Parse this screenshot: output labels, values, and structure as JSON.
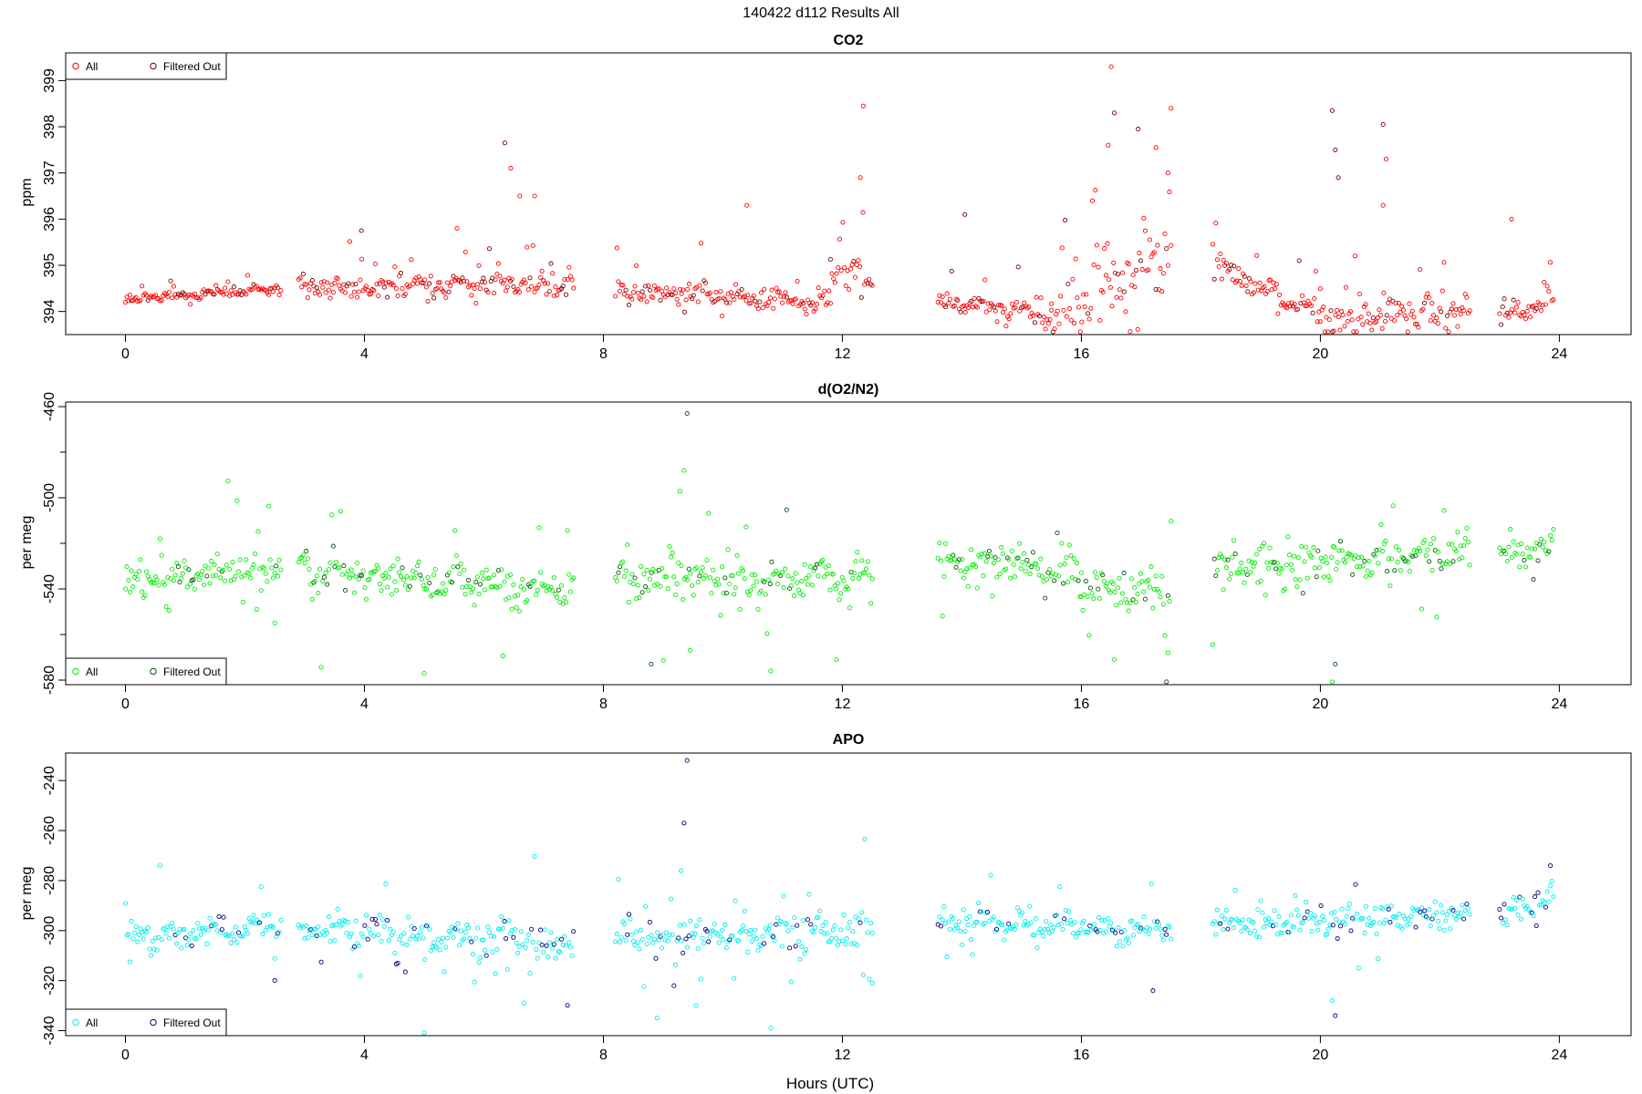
{
  "figure_title": "140422   d112   Results All",
  "xlabel": "Hours (UTC)",
  "chart_data": [
    {
      "type": "scatter",
      "title": "CO2",
      "ylabel": "ppm",
      "xlim": [
        -1,
        25.2
      ],
      "ylim": [
        393.5,
        399.6
      ],
      "xticks": [
        0,
        4,
        8,
        12,
        16,
        20,
        24
      ],
      "yticks": [
        394,
        395,
        396,
        397,
        398,
        399
      ],
      "legend_position": "top-left",
      "legend": [
        "All",
        "Filtered Out"
      ],
      "colors": {
        "all": "#ff0000",
        "filtered": "#7a0000"
      },
      "segments": [
        {
          "x": [
            0.0,
            2.6
          ],
          "y": [
            394.25,
            394.5
          ],
          "noise": 0.12
        },
        {
          "x": [
            2.9,
            7.5
          ],
          "y": [
            394.5,
            394.6
          ],
          "noise": 0.3
        },
        {
          "x": [
            8.2,
            11.8
          ],
          "y": [
            394.4,
            394.2
          ],
          "noise": 0.25
        },
        {
          "x": [
            11.8,
            12.5
          ],
          "y": [
            395.0,
            394.6
          ],
          "noise": 0.5
        },
        {
          "x": [
            13.6,
            15.5
          ],
          "y": [
            394.2,
            393.9
          ],
          "noise": 0.25
        },
        {
          "x": [
            15.5,
            17.5
          ],
          "y": [
            394.0,
            395.0
          ],
          "noise": 0.9
        },
        {
          "x": [
            18.2,
            20.0
          ],
          "y": [
            395.0,
            393.9
          ],
          "noise": 0.3
        },
        {
          "x": [
            20.0,
            22.5
          ],
          "y": [
            393.8,
            394.0
          ],
          "noise": 0.4
        },
        {
          "x": [
            23.0,
            23.9
          ],
          "y": [
            393.9,
            394.2
          ],
          "noise": 0.25
        }
      ],
      "outliers": [
        {
          "x": 3.95,
          "y": 395.75
        },
        {
          "x": 5.55,
          "y": 395.8
        },
        {
          "x": 6.35,
          "y": 397.65
        },
        {
          "x": 6.45,
          "y": 397.1
        },
        {
          "x": 6.6,
          "y": 396.5
        },
        {
          "x": 6.85,
          "y": 396.5
        },
        {
          "x": 10.4,
          "y": 396.3
        },
        {
          "x": 12.35,
          "y": 398.45
        },
        {
          "x": 12.3,
          "y": 396.9
        },
        {
          "x": 14.05,
          "y": 396.1
        },
        {
          "x": 16.5,
          "y": 399.3
        },
        {
          "x": 16.55,
          "y": 398.3
        },
        {
          "x": 16.45,
          "y": 397.6
        },
        {
          "x": 16.95,
          "y": 397.95
        },
        {
          "x": 17.25,
          "y": 397.55
        },
        {
          "x": 17.5,
          "y": 398.4
        },
        {
          "x": 17.45,
          "y": 397.0
        },
        {
          "x": 20.2,
          "y": 398.35
        },
        {
          "x": 20.25,
          "y": 397.5
        },
        {
          "x": 20.3,
          "y": 396.9
        },
        {
          "x": 21.05,
          "y": 398.05
        },
        {
          "x": 21.1,
          "y": 397.3
        },
        {
          "x": 21.05,
          "y": 396.3
        },
        {
          "x": 23.2,
          "y": 396.0
        }
      ]
    },
    {
      "type": "scatter",
      "title": "d(O2/N2)",
      "ylabel": "per meg",
      "xlim": [
        -1,
        25.2
      ],
      "ylim": [
        -582,
        -458
      ],
      "xticks": [
        0,
        4,
        8,
        12,
        16,
        20,
        24
      ],
      "yticks": [
        -580,
        -540,
        -500,
        -460
      ],
      "legend_position": "bottom-left",
      "legend": [
        "All",
        "Filtered Out"
      ],
      "colors": {
        "all": "#00ee00",
        "filtered": "#005500"
      },
      "segments": [
        {
          "x": [
            0.0,
            2.6
          ],
          "y": [
            -537,
            -530
          ],
          "noise": 7
        },
        {
          "x": [
            2.9,
            7.5
          ],
          "y": [
            -532,
            -540
          ],
          "noise": 9
        },
        {
          "x": [
            8.2,
            12.5
          ],
          "y": [
            -535,
            -535
          ],
          "noise": 10
        },
        {
          "x": [
            13.6,
            16.0
          ],
          "y": [
            -527,
            -532
          ],
          "noise": 8
        },
        {
          "x": [
            16.0,
            17.5
          ],
          "y": [
            -540,
            -540
          ],
          "noise": 12
        },
        {
          "x": [
            18.2,
            22.5
          ],
          "y": [
            -532,
            -525
          ],
          "noise": 9
        },
        {
          "x": [
            23.0,
            23.9
          ],
          "y": [
            -527,
            -520
          ],
          "noise": 8
        }
      ],
      "outliers": [
        {
          "x": 9.4,
          "y": -463
        },
        {
          "x": 9.35,
          "y": -488
        },
        {
          "x": 5.0,
          "y": -577
        },
        {
          "x": 8.8,
          "y": -573
        },
        {
          "x": 10.8,
          "y": -576
        },
        {
          "x": 20.2,
          "y": -582
        },
        {
          "x": 20.25,
          "y": -573
        },
        {
          "x": 16.55,
          "y": -571
        },
        {
          "x": 17.45,
          "y": -568
        },
        {
          "x": 11.9,
          "y": -571
        },
        {
          "x": 9.45,
          "y": -567
        },
        {
          "x": 2.5,
          "y": -555
        }
      ]
    },
    {
      "type": "scatter",
      "title": "APO",
      "ylabel": "per meg",
      "xlim": [
        -1,
        25.2
      ],
      "ylim": [
        -342,
        -229
      ],
      "xticks": [
        0,
        4,
        8,
        12,
        16,
        20,
        24
      ],
      "yticks": [
        -340,
        -320,
        -300,
        -280,
        -260,
        -240
      ],
      "legend_position": "bottom-left",
      "legend": [
        "All",
        "Filtered Out"
      ],
      "colors": {
        "all": "#00eeee",
        "filtered": "#000080"
      },
      "segments": [
        {
          "x": [
            0.0,
            2.6
          ],
          "y": [
            -303,
            -297
          ],
          "noise": 6
        },
        {
          "x": [
            2.9,
            7.5
          ],
          "y": [
            -300,
            -305
          ],
          "noise": 7
        },
        {
          "x": [
            8.2,
            12.5
          ],
          "y": [
            -303,
            -300
          ],
          "noise": 8
        },
        {
          "x": [
            13.6,
            17.5
          ],
          "y": [
            -296,
            -300
          ],
          "noise": 6
        },
        {
          "x": [
            18.2,
            22.5
          ],
          "y": [
            -298,
            -294
          ],
          "noise": 6
        },
        {
          "x": [
            23.0,
            23.9
          ],
          "y": [
            -295,
            -288
          ],
          "noise": 6
        }
      ],
      "outliers": [
        {
          "x": 9.4,
          "y": -232
        },
        {
          "x": 9.35,
          "y": -257
        },
        {
          "x": 5.0,
          "y": -341
        },
        {
          "x": 8.9,
          "y": -335
        },
        {
          "x": 10.8,
          "y": -339
        },
        {
          "x": 20.25,
          "y": -334
        },
        {
          "x": 20.2,
          "y": -328
        },
        {
          "x": 9.55,
          "y": -330
        },
        {
          "x": 12.5,
          "y": -321
        },
        {
          "x": 2.5,
          "y": -320
        },
        {
          "x": 9.3,
          "y": -276
        },
        {
          "x": 23.85,
          "y": -274
        }
      ]
    }
  ]
}
